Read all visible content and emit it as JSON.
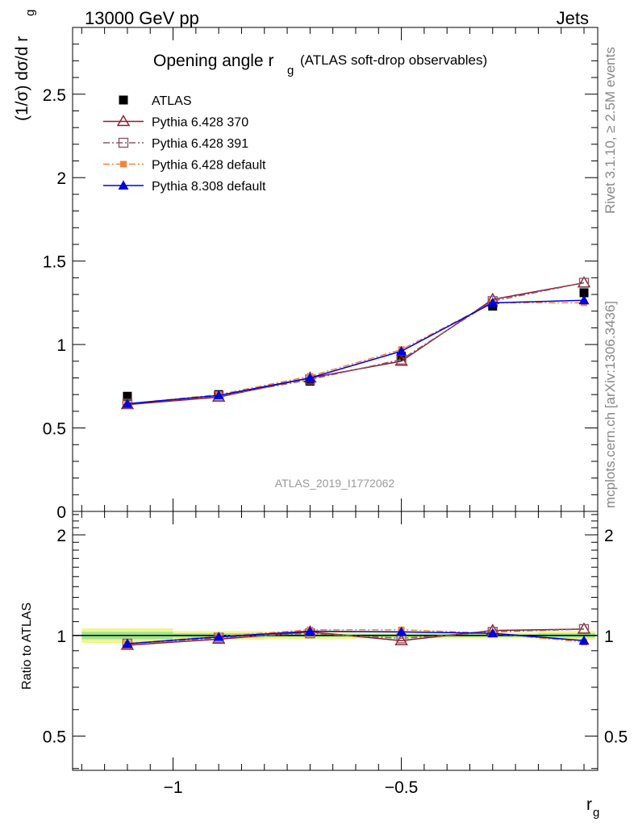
{
  "header": {
    "left": "13000 GeV pp",
    "right": "Jets"
  },
  "side_text": {
    "top": "Rivet 3.1.10, ≥ 2.5M events",
    "bottom": "mcplots.cern.ch [arXiv:1306.3436]"
  },
  "colors": {
    "atlas": "#000000",
    "pythia6_370": "#8b1a2a",
    "pythia6_391": "#8a5a6a",
    "pythia6_default": "#f58235",
    "pythia8_default": "#0000e0",
    "band_inner": "#9ce68c",
    "band_outer": "#f0f58c"
  },
  "chart_data": [
    {
      "type": "line",
      "title_main": "Opening angle r",
      "title_sub": "g",
      "title_extra": "(ATLAS soft-drop observables)",
      "ylabel": "(1/σ) dσ/d r",
      "ylabel_sub": "g",
      "watermark": "ATLAS_2019_I1772062",
      "ylim": [
        0,
        2.9
      ],
      "yticks": [
        "0",
        "0.5",
        "1",
        "1.5",
        "2",
        "2.5"
      ],
      "ytick_values": [
        0,
        0.5,
        1,
        1.5,
        2,
        2.5
      ],
      "grid": false,
      "legend_placement": "top-left",
      "x": [
        -1.1,
        -0.9,
        -0.7,
        -0.5,
        -0.3,
        -0.1
      ],
      "series": [
        {
          "name": "ATLAS",
          "key": "atlas",
          "marker": "square-filled",
          "values": [
            0.69,
            0.7,
            0.78,
            0.93,
            1.23,
            1.31
          ]
        },
        {
          "name": "Pythia 6.428 370",
          "key": "pythia6_370",
          "marker": "triangle-open",
          "dash": "solid",
          "values": [
            0.64,
            0.685,
            0.8,
            0.9,
            1.27,
            1.37
          ]
        },
        {
          "name": "Pythia 6.428 391",
          "key": "pythia6_391",
          "marker": "square-open",
          "dash": "dashdot",
          "values": [
            0.645,
            0.69,
            0.79,
            0.91,
            1.26,
            1.37
          ]
        },
        {
          "name": "Pythia 6.428 default",
          "key": "pythia6_default",
          "marker": "square-filled-small",
          "dash": "dashdot",
          "values": [
            0.645,
            0.7,
            0.81,
            0.97,
            1.25,
            1.25
          ]
        },
        {
          "name": "Pythia 8.308 default",
          "key": "pythia8_default",
          "marker": "triangle-filled",
          "dash": "solid",
          "values": [
            0.645,
            0.695,
            0.8,
            0.96,
            1.25,
            1.265
          ]
        }
      ]
    },
    {
      "type": "line",
      "ylabel": "Ratio to ATLAS",
      "xlabel": "r",
      "xlabel_sub": "g",
      "xlim": [
        -1.22,
        -0.07
      ],
      "xticks": [
        "−1",
        "−0.5"
      ],
      "xtick_values": [
        -1.0,
        -0.5
      ],
      "yticks": [
        "0.5",
        "1",
        "2"
      ],
      "ytick_values": [
        0.5,
        1,
        2
      ],
      "ylim": [
        0.395,
        2.35
      ],
      "y_scale": "log",
      "grid": false,
      "band": {
        "x_edges": [
          -1.2,
          -1.0,
          -0.8,
          -0.6,
          -0.4,
          -0.2,
          -0.075
        ],
        "inner_halfwidth": [
          0.025,
          0.015,
          0.01,
          0.01,
          0.01,
          0.015
        ],
        "outer_halfwidth": [
          0.05,
          0.03,
          0.025,
          0.02,
          0.02,
          0.03
        ]
      },
      "x": [
        -1.1,
        -0.9,
        -0.7,
        -0.5,
        -0.3,
        -0.1
      ],
      "series": [
        {
          "name": "Pythia 6.428 370",
          "key": "pythia6_370",
          "marker": "triangle-open",
          "dash": "solid",
          "values": [
            0.935,
            0.975,
            1.025,
            0.965,
            1.035,
            1.045
          ]
        },
        {
          "name": "Pythia 6.428 391",
          "key": "pythia6_391",
          "marker": "square-open",
          "dash": "dashdot",
          "values": [
            0.945,
            0.985,
            1.015,
            0.98,
            1.025,
            1.045
          ]
        },
        {
          "name": "Pythia 6.428 default",
          "key": "pythia6_default",
          "marker": "square-filled-small",
          "dash": "dashdot",
          "values": [
            0.945,
            0.995,
            1.04,
            1.04,
            1.015,
            0.955
          ]
        },
        {
          "name": "Pythia 8.308 default",
          "key": "pythia8_default",
          "marker": "triangle-filled",
          "dash": "solid",
          "values": [
            0.945,
            0.99,
            1.03,
            1.025,
            1.015,
            0.965
          ]
        }
      ]
    }
  ]
}
